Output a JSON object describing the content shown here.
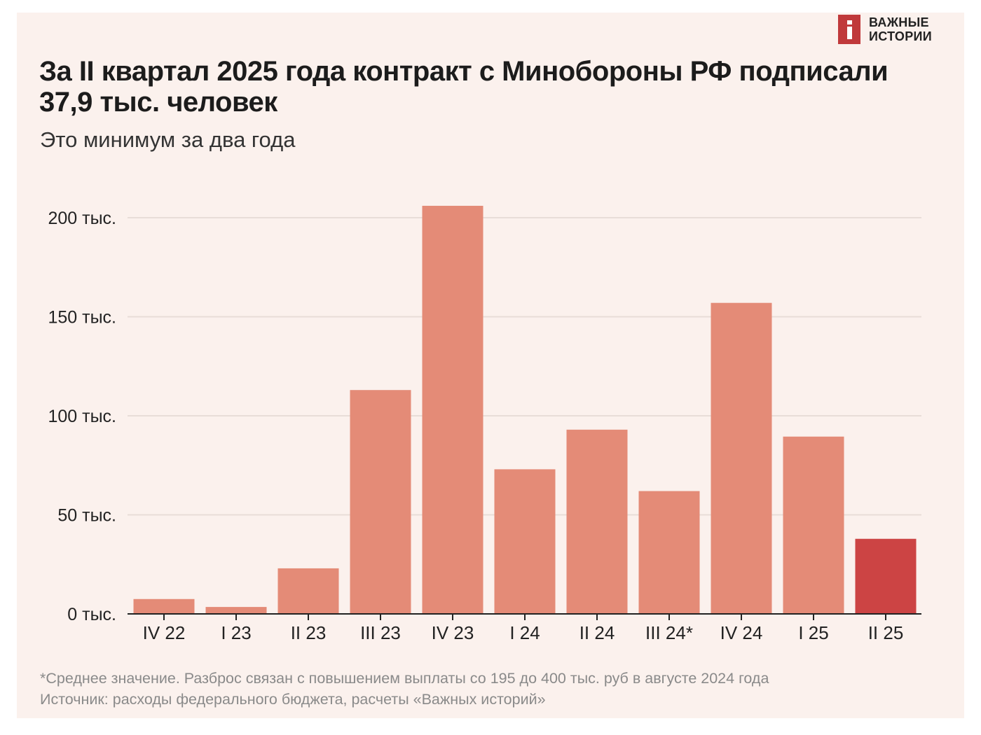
{
  "brand": {
    "line1": "ВАЖНЫЕ",
    "line2": "ИСТОРИИ"
  },
  "title": "За II квартал 2025 года контракт с Минобороны РФ подписали 37,9 тыс. человек",
  "subtitle": "Это минимум за два года",
  "footnote": "*Среднее значение. Разброс связан с повышением выплаты со 195 до 400 тыс. руб в августе 2024 года",
  "source": "Источник: расходы федерального бюджета, расчеты «Важных историй»",
  "colors": {
    "bar": "#e48b77",
    "highlight": "#cc4444",
    "grid": "#e8ddd8",
    "axis": "#222222",
    "text": "#222222"
  },
  "chart_data": {
    "type": "bar",
    "title": "За II квартал 2025 года контракт с Минобороны РФ подписали 37,9 тыс. человек",
    "xlabel": "",
    "ylabel": "",
    "ylim": [
      0,
      200
    ],
    "yticks": [
      0,
      50,
      100,
      150,
      200
    ],
    "ytick_labels": [
      "0 тыс.",
      "50 тыс.",
      "100 тыс.",
      "150 тыс.",
      "200 тыс."
    ],
    "grid": true,
    "categories": [
      "IV 22",
      "I 23",
      "II 23",
      "III 23",
      "IV 23",
      "I 24",
      "II 24",
      "III 24*",
      "IV 24",
      "I 25",
      "II 25"
    ],
    "values": [
      7.5,
      3.5,
      23,
      113,
      206,
      73,
      93,
      62,
      157,
      89.5,
      37.9
    ],
    "highlight_index": 10,
    "units": "тыс. человек"
  }
}
